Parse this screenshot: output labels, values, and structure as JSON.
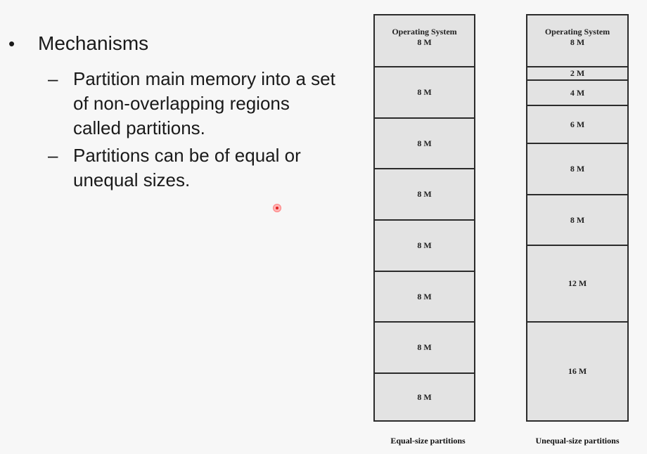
{
  "bullets": {
    "main": "Mechanisms",
    "bullet_symbol": "•",
    "dash_symbol": "–",
    "sub": [
      "Partition main memory into a set of non-overlapping regions called partitions.",
      "Partitions can be of equal or unequal sizes."
    ]
  },
  "diagram": {
    "os_label": "Operating System",
    "equal": {
      "caption": "Equal-size partitions",
      "os_size": "8 M",
      "partitions": [
        "8 M",
        "8 M",
        "8 M",
        "8 M",
        "8 M",
        "8 M",
        "8 M"
      ]
    },
    "unequal": {
      "caption": "Unequal-size partitions",
      "os_size": "8 M",
      "partitions": [
        "2 M",
        "4 M",
        "6 M",
        "8 M",
        "8 M",
        "12 M",
        "16 M"
      ]
    }
  }
}
